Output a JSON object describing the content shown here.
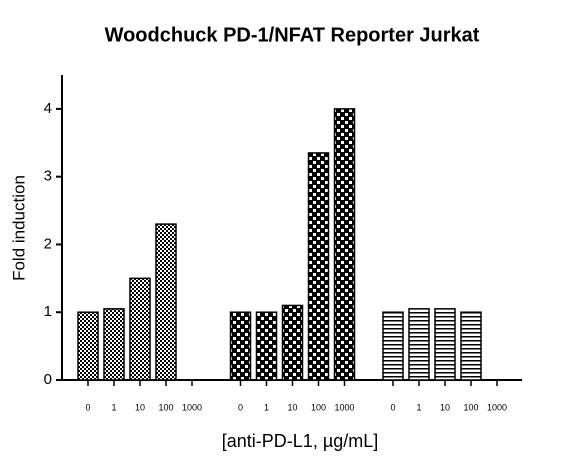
{
  "chart_data": {
    "type": "bar",
    "title": "Woodchuck PD-1/NFAT Reporter Jurkat",
    "x_label": "[anti-PD-L1, µg/mL]",
    "y_label": "Fold induction",
    "categories": [
      "0",
      "1",
      "10",
      "100",
      "1000",
      "0",
      "1",
      "10",
      "100",
      "1000",
      "0",
      "1",
      "10",
      "100",
      "1000"
    ],
    "series": [
      {
        "pattern": "fine-check",
        "values": [
          1.0,
          1.05,
          1.5,
          2.3,
          null,
          null,
          null,
          null,
          null,
          null,
          null,
          null,
          null,
          null,
          null
        ]
      },
      {
        "pattern": "coarse-check",
        "values": [
          null,
          null,
          null,
          null,
          null,
          1.0,
          1.0,
          1.1,
          3.35,
          4.0,
          null,
          null,
          null,
          null,
          null
        ]
      },
      {
        "pattern": "stripes",
        "values": [
          null,
          null,
          null,
          null,
          null,
          null,
          null,
          null,
          null,
          null,
          1.0,
          1.05,
          1.05,
          1.0,
          null
        ]
      }
    ],
    "ylim": [
      0,
      4.5
    ],
    "yticks": [
      0,
      1,
      2,
      3,
      4
    ]
  }
}
